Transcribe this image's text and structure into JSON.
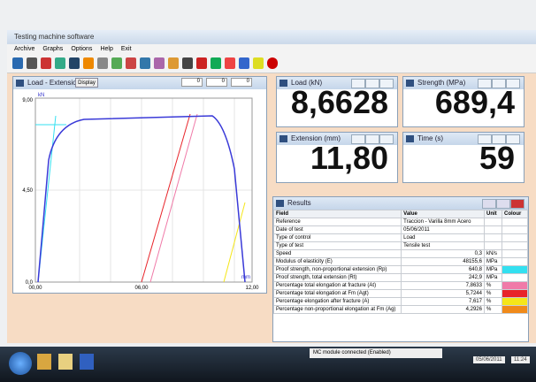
{
  "window": {
    "title": "Testing machine software",
    "menu": [
      "Archive",
      "Graphs",
      "Options",
      "Help",
      "Exit"
    ]
  },
  "graph": {
    "title": "Load - Extension",
    "button": "Display",
    "inputs": [
      "0",
      "0",
      "0"
    ],
    "y_labels": [
      "9,00",
      "4,50",
      "0,0"
    ],
    "x_labels": [
      "00,00",
      "06,00",
      "12,00"
    ],
    "y_unit": "kN",
    "x_unit": "mm"
  },
  "displays": [
    {
      "label": "Load (kN)",
      "value": "8,6628"
    },
    {
      "label": "Strength (MPa)",
      "value": "689,4"
    },
    {
      "label": "Extension (mm)",
      "value": "11,80"
    },
    {
      "label": "Time (s)",
      "value": "59"
    }
  ],
  "results": {
    "title": "Results",
    "columns": [
      "Field",
      "Value",
      "Unit",
      "Colour"
    ],
    "rows": [
      {
        "field": "Reference",
        "value": "Traccion - Varilla 8mm Acero",
        "unit": null,
        "colour": null
      },
      {
        "field": "Date of test",
        "value": "05/06/2011",
        "unit": null,
        "colour": null
      },
      {
        "field": "Type of control",
        "value": "Load",
        "unit": null,
        "colour": null
      },
      {
        "field": "Type of test",
        "value": "Tensile test",
        "unit": null,
        "colour": null
      },
      {
        "field": "Speed",
        "value": "0,3",
        "unit": "kN/s",
        "colour": null
      },
      {
        "field": "Modulus of elasticity (E)",
        "value": "48155,6",
        "unit": "MPa",
        "colour": null
      },
      {
        "field": "Proof strength, non-proportional extension (Rp)",
        "value": "640,8",
        "unit": "MPa",
        "colour": "#33e0f0"
      },
      {
        "field": "Proof strength, total extension (Rt)",
        "value": "242,9",
        "unit": "MPa",
        "colour": null
      },
      {
        "field": "Percentage total elongation at fracture (At)",
        "value": "7,8633",
        "unit": "%",
        "colour": "#f07aa8"
      },
      {
        "field": "Percentage total elongation at Fm (Agt)",
        "value": "5,7244",
        "unit": "%",
        "colour": "#e8242a"
      },
      {
        "field": "Percentage elongation after fracture (A)",
        "value": "7,617",
        "unit": "%",
        "colour": "#f5e61a"
      },
      {
        "field": "Percentage non-proportional elongation at Fm (Ag)",
        "value": "4,2926",
        "unit": "%",
        "colour": "#f08a1a"
      }
    ]
  },
  "taskbar": {
    "status": "MC module connected (Enabled)",
    "date": "05/06/2011",
    "time": "11:24"
  }
}
